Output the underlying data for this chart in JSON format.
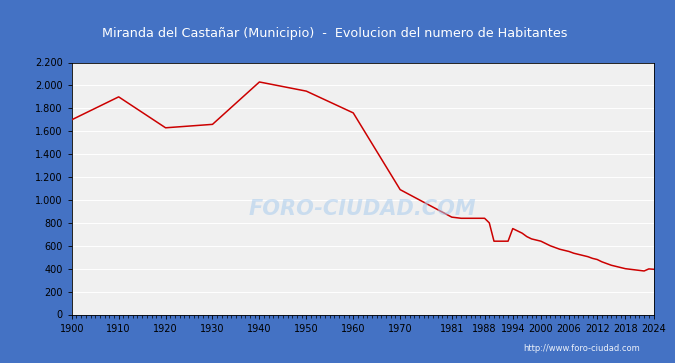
{
  "title": "Miranda del Castañar (Municipio)  -  Evolucion del numero de Habitantes",
  "title_bgcolor": "#4472c4",
  "title_color": "white",
  "watermark": "http://www.foro-ciudad.com",
  "years": [
    1900,
    1910,
    1920,
    1930,
    1940,
    1950,
    1960,
    1970,
    1981,
    1983,
    1985,
    1986,
    1987,
    1988,
    1989,
    1990,
    1991,
    1992,
    1993,
    1994,
    1995,
    1996,
    1997,
    1998,
    1999,
    2000,
    2001,
    2002,
    2003,
    2004,
    2005,
    2006,
    2007,
    2008,
    2009,
    2010,
    2011,
    2012,
    2013,
    2014,
    2015,
    2016,
    2017,
    2018,
    2019,
    2020,
    2021,
    2022,
    2023,
    2024
  ],
  "population": [
    1700,
    1900,
    1630,
    1660,
    2030,
    1950,
    1760,
    1090,
    850,
    840,
    840,
    840,
    840,
    840,
    800,
    640,
    640,
    640,
    640,
    750,
    730,
    710,
    680,
    660,
    650,
    640,
    620,
    600,
    585,
    570,
    560,
    550,
    535,
    525,
    515,
    505,
    490,
    480,
    460,
    445,
    430,
    420,
    410,
    400,
    395,
    390,
    385,
    380,
    398,
    395
  ],
  "line_color": "#cc0000",
  "fig_bg_color": "#4472c4",
  "plot_bg_color": "#f0f0f0",
  "grid_color": "white",
  "ylim": [
    0,
    2200
  ],
  "yticks": [
    0,
    200,
    400,
    600,
    800,
    1000,
    1200,
    1400,
    1600,
    1800,
    2000,
    2200
  ],
  "ytick_labels": [
    "0",
    "200",
    "400",
    "600",
    "800",
    "1.000",
    "1.200",
    "1.400",
    "1.600",
    "1.800",
    "2.000",
    "2.200"
  ],
  "xtick_labels": [
    "1900",
    "1910",
    "1920",
    "1930",
    "1940",
    "1950",
    "1960",
    "1970",
    "1981",
    "1988",
    "1994",
    "2000",
    "2006",
    "2012",
    "2018",
    "2024"
  ],
  "xtick_positions": [
    1900,
    1910,
    1920,
    1930,
    1940,
    1950,
    1960,
    1970,
    1981,
    1988,
    1994,
    2000,
    2006,
    2012,
    2018,
    2024
  ],
  "xlim": [
    1900,
    2024
  ],
  "foro_watermark": "FORO-CIUDAD.COM",
  "foro_watermark_color": "#aaccee",
  "bottom_url": "http://www.foro-ciudad.com"
}
